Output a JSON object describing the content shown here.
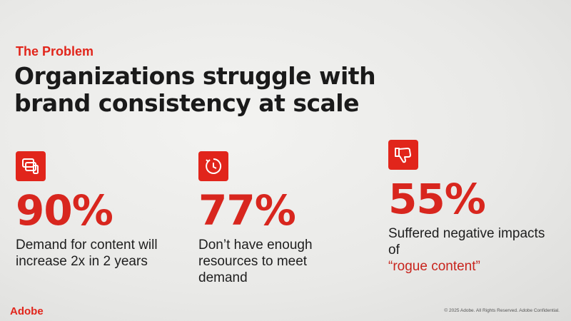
{
  "slide": {
    "kicker": "The Problem",
    "headline": "Organizations struggle with brand consistency at scale"
  },
  "stats": [
    {
      "icon": "content-devices-icon",
      "value": "90%",
      "description": "Demand for content will increase 2x in 2 years"
    },
    {
      "icon": "clock-icon",
      "value": "77%",
      "description": "Don’t have enough resources to meet demand"
    },
    {
      "icon": "thumbs-down-icon",
      "value": "55%",
      "description_prefix": "Suffered negative impacts of",
      "description_accent": "“rogue content”"
    }
  ],
  "footer": {
    "logo": "Adobe",
    "copyright": "© 2025 Adobe. All Rights Reserved. Adobe Confidential."
  },
  "colors": {
    "accent": "#e1251b",
    "text": "#1e1e1e",
    "background": "#ececea"
  }
}
